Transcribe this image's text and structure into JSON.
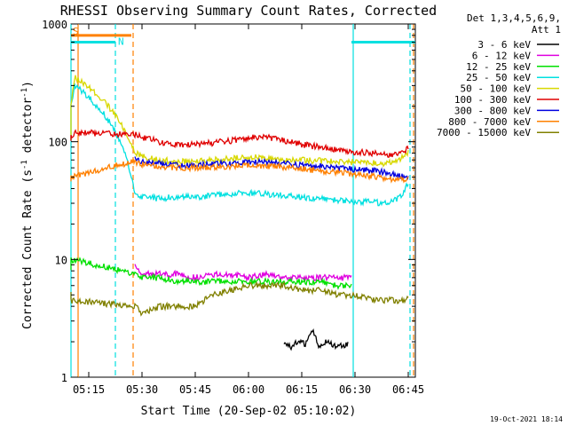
{
  "chart_data": {
    "type": "line",
    "title": "RHESSI Observing Summary Count Rates, Corrected",
    "xlabel": "Start Time (20-Sep-02 05:10:02)",
    "ylabel_main": "Corrected Count Rate (s",
    "ylabel_sup": "-1",
    "ylabel_mid": " detector",
    "ylabel_end": ")",
    "x_unit": "minutes since 05:10:02",
    "xlim": [
      0,
      97
    ],
    "ylim": [
      1,
      1000
    ],
    "y_scale": "log",
    "x_ticks": [
      {
        "label": "05:15",
        "value": 5
      },
      {
        "label": "05:30",
        "value": 20
      },
      {
        "label": "05:45",
        "value": 35
      },
      {
        "label": "06:00",
        "value": 50
      },
      {
        "label": "06:15",
        "value": 65
      },
      {
        "label": "06:30",
        "value": 80
      },
      {
        "label": "06:45",
        "value": 95
      }
    ],
    "y_ticks": [
      {
        "label": "1",
        "value": 1
      },
      {
        "label": "10",
        "value": 10
      },
      {
        "label": "100",
        "value": 100
      },
      {
        "label": "1000",
        "value": 1000
      }
    ],
    "legend_header_1": "Det 1,3,4,5,6,9,",
    "legend_header_2": "Att 1",
    "series": [
      {
        "name": "3 - 6 keV",
        "color": "#000000",
        "x": [
          60,
          62,
          64,
          66,
          68,
          70,
          72,
          75,
          78
        ],
        "y": [
          1.9,
          1.8,
          2.0,
          1.9,
          2.5,
          1.8,
          2.0,
          1.8,
          1.9
        ]
      },
      {
        "name": "6 - 12 keV",
        "color": "#e000e0",
        "x": [
          18,
          19,
          20,
          25,
          30,
          35,
          40,
          45,
          50,
          55,
          60,
          65,
          70,
          75,
          79
        ],
        "y": [
          9,
          8,
          7.5,
          7.5,
          7.5,
          7.0,
          7.5,
          7.5,
          7.0,
          7.5,
          7.0,
          7.0,
          7.0,
          7.0,
          7.0
        ]
      },
      {
        "name": "12 - 25 keV",
        "color": "#00e000",
        "x": [
          -1,
          0,
          18,
          20,
          25,
          30,
          35,
          40,
          45,
          50,
          55,
          60,
          65,
          70,
          75,
          79
        ],
        "y": [
          8,
          10,
          7.5,
          7,
          7,
          6.5,
          6.5,
          6.5,
          6.5,
          6.5,
          6.5,
          6.5,
          6.5,
          6.5,
          6.0,
          6.0
        ]
      },
      {
        "name": "25 - 50 keV",
        "color": "#00e0e0",
        "x": [
          -1,
          0,
          1,
          18,
          20,
          25,
          30,
          35,
          40,
          45,
          50,
          55,
          60,
          65,
          70,
          75,
          80,
          85,
          88,
          90,
          92,
          94,
          95
        ],
        "y": [
          100,
          200,
          300,
          35,
          34,
          33,
          34,
          34,
          35,
          36,
          37,
          36,
          35,
          34,
          33,
          32,
          31,
          31,
          30,
          31,
          33,
          38,
          45
        ]
      },
      {
        "name": "50 - 100 keV",
        "color": "#d8d800",
        "x": [
          -1,
          0,
          1,
          18,
          20,
          25,
          30,
          35,
          40,
          45,
          50,
          55,
          60,
          65,
          70,
          75,
          80,
          85,
          88,
          90,
          92,
          94,
          95
        ],
        "y": [
          100,
          200,
          350,
          80,
          75,
          70,
          68,
          68,
          70,
          72,
          74,
          73,
          71,
          70,
          69,
          68,
          67,
          66,
          65,
          66,
          70,
          76,
          82
        ]
      },
      {
        "name": "100 - 300 keV",
        "color": "#e00000",
        "x": [
          -1,
          0,
          1,
          18,
          20,
          25,
          30,
          35,
          40,
          45,
          50,
          55,
          60,
          65,
          70,
          75,
          80,
          85,
          88,
          90,
          92,
          94,
          95
        ],
        "y": [
          100,
          110,
          120,
          115,
          108,
          100,
          95,
          95,
          98,
          102,
          108,
          110,
          102,
          95,
          90,
          85,
          82,
          80,
          77,
          78,
          80,
          84,
          88
        ]
      },
      {
        "name": "300 - 800 keV",
        "color": "#0000e0",
        "x": [
          18,
          20,
          25,
          30,
          35,
          40,
          45,
          50,
          55,
          60,
          65,
          70,
          75,
          80,
          85,
          88,
          90,
          92,
          94,
          95
        ],
        "y": [
          72,
          68,
          65,
          63,
          63,
          64,
          66,
          68,
          67,
          65,
          63,
          62,
          60,
          58,
          57,
          55,
          53,
          52,
          50,
          49
        ]
      },
      {
        "name": "800 - 7000 keV",
        "color": "#ff8000",
        "x": [
          -1,
          0,
          18,
          20,
          25,
          30,
          35,
          40,
          45,
          50,
          55,
          60,
          65,
          70,
          75,
          80,
          85,
          88,
          90,
          92,
          94,
          95
        ],
        "y": [
          48,
          50,
          68,
          64,
          62,
          60,
          60,
          61,
          62,
          63,
          62,
          61,
          59,
          57,
          55,
          53,
          51,
          49,
          48,
          48,
          48,
          48
        ]
      },
      {
        "name": "7000 - 15000 keV",
        "color": "#808000",
        "x": [
          -1,
          0,
          18,
          20,
          25,
          30,
          35,
          40,
          45,
          50,
          55,
          60,
          65,
          70,
          75,
          80,
          85,
          88,
          90,
          92,
          94,
          95
        ],
        "y": [
          5,
          4.5,
          4,
          3.5,
          4,
          4,
          4,
          5,
          5.5,
          6,
          6,
          6,
          5.5,
          5.5,
          5,
          5,
          4.5,
          4.5,
          4.5,
          4.5,
          4.5,
          5
        ]
      }
    ],
    "attenuator_state_line": {
      "color": "#ff8000",
      "x": [
        -1,
        17
      ],
      "y": [
        800,
        800
      ],
      "label": "S"
    },
    "night_line_1": {
      "color": "#00e0e0",
      "x": [
        -1,
        12.5
      ],
      "y": [
        700,
        700
      ]
    },
    "night_line_2": {
      "color": "#00e0e0",
      "x": [
        79,
        97
      ],
      "y": [
        700,
        700
      ]
    },
    "night_label": "N",
    "vlines": [
      {
        "x": 0,
        "color": "#00e0e0",
        "style": "solid"
      },
      {
        "x": 2,
        "color": "#ff8000",
        "style": "solid"
      },
      {
        "x": 12.5,
        "color": "#00e0e0",
        "style": "dashed"
      },
      {
        "x": 17.5,
        "color": "#ff8000",
        "style": "dashed"
      },
      {
        "x": 79.5,
        "color": "#00e0e0",
        "style": "solid"
      },
      {
        "x": 95.5,
        "color": "#00e0e0",
        "style": "dashed"
      },
      {
        "x": 96.5,
        "color": "#ff8000",
        "style": "dashed"
      }
    ],
    "timestamp": "19-Oct-2021 18:14"
  }
}
